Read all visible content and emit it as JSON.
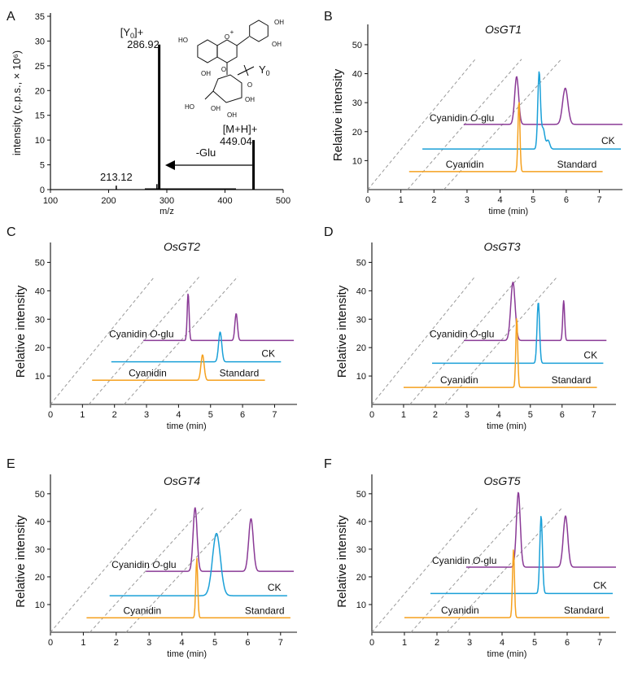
{
  "colors": {
    "purple": "#8a3a96",
    "blue": "#1aa0d8",
    "orange": "#f5a11f",
    "grey": "#9a9a9a",
    "axis": "#111111"
  },
  "chart_data": [
    {
      "type": "bar",
      "panel": "A",
      "xlabel": "m/z",
      "ylabel": "intensity (c.p.s., × 10⁶)",
      "xlim": [
        100,
        500
      ],
      "ylim": [
        0,
        35
      ],
      "xticks": [
        "100",
        "200",
        "300",
        "400",
        "500"
      ],
      "yticks": [
        "0",
        "5",
        "10",
        "15",
        "20",
        "25",
        "30",
        "35"
      ],
      "peaks": [
        {
          "x": 213.12,
          "y": 0.8
        },
        {
          "x": 283,
          "y": 1.1
        },
        {
          "x": 286.92,
          "y": 29.3
        },
        {
          "x": 449.04,
          "y": 10.0
        }
      ],
      "annotations": {
        "y0_line1": "[Y",
        "y0_sub": "0",
        "y0_line1_end": "]+",
        "y0_value": "286.92",
        "mh_line1": "[M+H]+",
        "mh_value": "449.04",
        "minor_value": "213.12",
        "loss": "-Glu",
        "fragment": "Y",
        "fragment_sub": "0"
      },
      "structure_labels": [
        "HO",
        "O",
        "+",
        "OH",
        "OH",
        "OH",
        "O",
        "O",
        "HO",
        "OH",
        "OH",
        "OH"
      ]
    },
    {
      "type": "line",
      "panel": "B",
      "title": "OsGT1",
      "xlabel": "time (min)",
      "ylabel": "Relative intensity",
      "xlim": [
        0,
        7.7
      ],
      "ylim": [
        0,
        57
      ],
      "xticks": [
        "0",
        "1",
        "2",
        "3",
        "4",
        "5",
        "6",
        "7"
      ],
      "yticks": [
        "10",
        "20",
        "30",
        "40",
        "50"
      ],
      "series": [
        {
          "name": "Cyanidin O-glu",
          "color": "purple",
          "x0": 2.9,
          "x1": 7.7,
          "base": 22.5,
          "peaks": [
            [
              4.5,
              16.5,
              0.06
            ],
            [
              5.97,
              12.5,
              0.08
            ]
          ]
        },
        {
          "name": "CK",
          "color": "blue",
          "x0": 1.65,
          "x1": 7.65,
          "base": 14,
          "peaks": [
            [
              5.18,
              26.5,
              0.04
            ],
            [
              5.3,
              7,
              0.05
            ],
            [
              5.45,
              3,
              0.05
            ]
          ]
        },
        {
          "name": "Standard",
          "color": "orange",
          "x0": 1.25,
          "x1": 7.1,
          "base": 6.2,
          "peaks": [
            [
              4.57,
              24.5,
              0.03
            ]
          ]
        }
      ],
      "labels": {
        "purple": "Cyanidin ",
        "purple_italic": "O",
        "purple_end": "-glu",
        "blue": "CK",
        "orange_left": "Cyanidin",
        "orange_right": "Standard"
      }
    },
    {
      "type": "line",
      "panel": "C",
      "title": "OsGT2",
      "xlabel": "time (min)",
      "ylabel": "Relative intensity",
      "xlim": [
        0,
        7.7
      ],
      "ylim": [
        0,
        57
      ],
      "xticks": [
        "0",
        "1",
        "2",
        "3",
        "4",
        "5",
        "6",
        "7"
      ],
      "yticks": [
        "10",
        "20",
        "30",
        "40",
        "50"
      ],
      "series": [
        {
          "name": "Cyanidin O-glu",
          "color": "purple",
          "x0": 2.9,
          "x1": 7.6,
          "base": 22.5,
          "peaks": [
            [
              4.3,
              16.5,
              0.03
            ],
            [
              5.8,
              9.5,
              0.04
            ]
          ]
        },
        {
          "name": "CK",
          "color": "blue",
          "x0": 1.9,
          "x1": 7.2,
          "base": 15,
          "peaks": [
            [
              5.3,
              10.5,
              0.05
            ]
          ]
        },
        {
          "name": "Standard",
          "color": "orange",
          "x0": 1.3,
          "x1": 6.7,
          "base": 8.5,
          "peaks": [
            [
              4.75,
              9,
              0.05
            ]
          ]
        }
      ],
      "labels": {
        "purple": "Cyanidin ",
        "purple_italic": "O",
        "purple_end": "-glu",
        "blue": "CK",
        "orange_left": "Cyanidin",
        "orange_right": "Standard"
      }
    },
    {
      "type": "line",
      "panel": "D",
      "title": "OsGT3",
      "xlabel": "time (min)",
      "ylabel": "Relative intensity",
      "xlim": [
        0,
        7.7
      ],
      "ylim": [
        0,
        57
      ],
      "xticks": [
        "0",
        "1",
        "2",
        "3",
        "4",
        "5",
        "6",
        "7"
      ],
      "yticks": [
        "10",
        "20",
        "30",
        "40",
        "50"
      ],
      "series": [
        {
          "name": "Cyanidin O-glu",
          "color": "purple",
          "x0": 2.9,
          "x1": 7.4,
          "base": 22.5,
          "peaks": [
            [
              4.45,
              20.5,
              0.07
            ],
            [
              6.05,
              14,
              0.03
            ]
          ]
        },
        {
          "name": "CK",
          "color": "blue",
          "x0": 1.9,
          "x1": 7.3,
          "base": 14.5,
          "peaks": [
            [
              5.25,
              21.5,
              0.04
            ]
          ]
        },
        {
          "name": "Standard",
          "color": "orange",
          "x0": 1.0,
          "x1": 7.1,
          "base": 6,
          "peaks": [
            [
              4.57,
              24.5,
              0.03
            ]
          ]
        }
      ],
      "labels": {
        "purple": "Cyanidin ",
        "purple_italic": "O",
        "purple_end": "-glu",
        "blue": "CK",
        "orange_left": "Cyanidin",
        "orange_right": "Standard"
      }
    },
    {
      "type": "line",
      "panel": "E",
      "title": "OsGT4",
      "xlabel": "time (min)",
      "ylabel": "Relative intensity",
      "xlim": [
        0,
        7.5
      ],
      "ylim": [
        0,
        57
      ],
      "xticks": [
        "0",
        "1",
        "2",
        "3",
        "4",
        "5",
        "6",
        "7"
      ],
      "yticks": [
        "10",
        "20",
        "30",
        "40",
        "50"
      ],
      "series": [
        {
          "name": "Cyanidin O-glu",
          "color": "purple",
          "x0": 2.9,
          "x1": 7.4,
          "base": 22,
          "peaks": [
            [
              4.4,
              23,
              0.06
            ],
            [
              6.1,
              19,
              0.07
            ]
          ]
        },
        {
          "name": "CK",
          "color": "blue",
          "x0": 1.8,
          "x1": 7.2,
          "base": 13.2,
          "peaks": [
            [
              5.05,
              22.5,
              0.12
            ]
          ]
        },
        {
          "name": "Standard",
          "color": "orange",
          "x0": 1.1,
          "x1": 7.3,
          "base": 5.2,
          "peaks": [
            [
              4.45,
              21.5,
              0.03
            ]
          ]
        }
      ],
      "labels": {
        "purple": "Cyanidin ",
        "purple_italic": "O",
        "purple_end": "-glu",
        "blue": "CK",
        "orange_left": "Cyanidin",
        "orange_right": "Standard"
      }
    },
    {
      "type": "line",
      "panel": "F",
      "title": "OsGT5",
      "xlabel": "time (min)",
      "ylabel": "Relative intensity",
      "xlim": [
        0,
        7.5
      ],
      "ylim": [
        0,
        57
      ],
      "xticks": [
        "0",
        "1",
        "2",
        "3",
        "4",
        "5",
        "6",
        "7"
      ],
      "yticks": [
        "10",
        "20",
        "30",
        "40",
        "50"
      ],
      "series": [
        {
          "name": "Cyanidin O-glu",
          "color": "purple",
          "x0": 2.9,
          "x1": 7.5,
          "base": 23.5,
          "peaks": [
            [
              4.5,
              27,
              0.06
            ],
            [
              5.95,
              18.5,
              0.07
            ]
          ]
        },
        {
          "name": "CK",
          "color": "blue",
          "x0": 1.8,
          "x1": 7.4,
          "base": 14,
          "peaks": [
            [
              5.2,
              28,
              0.04
            ]
          ]
        },
        {
          "name": "Standard",
          "color": "orange",
          "x0": 1.0,
          "x1": 7.3,
          "base": 5.3,
          "peaks": [
            [
              4.35,
              24.5,
              0.03
            ]
          ]
        }
      ],
      "labels": {
        "purple": "Cyanidin ",
        "purple_italic": "O",
        "purple_end": "-glu",
        "blue": "CK",
        "orange_left": "Cyanidin",
        "orange_right": "Standard"
      }
    }
  ]
}
